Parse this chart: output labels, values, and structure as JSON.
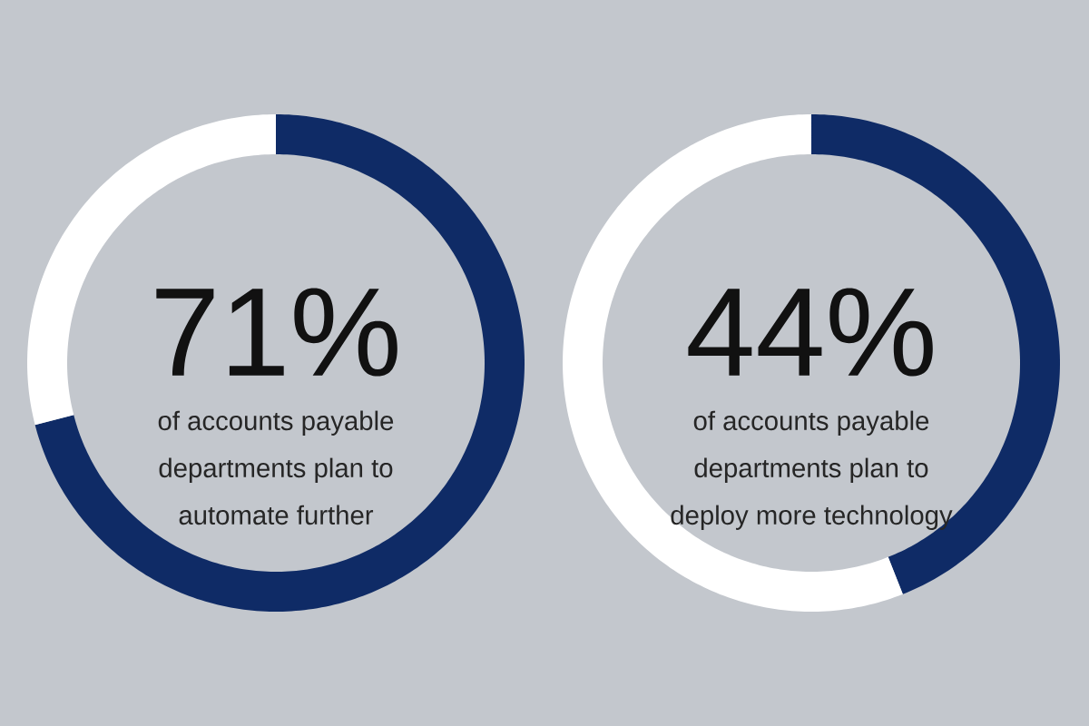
{
  "chart_data": [
    {
      "type": "donut",
      "categories": [
        null,
        null
      ],
      "values": [
        71,
        29
      ],
      "colors": [
        "#0f2b66",
        "#ffffff"
      ],
      "value_labels": [
        "71%",
        null
      ],
      "annotations": [
        "of accounts payable departments plan to automate further"
      ]
    },
    {
      "type": "donut",
      "categories": [
        null,
        null
      ],
      "values": [
        44,
        56
      ],
      "colors": [
        "#0f2b66",
        "#ffffff"
      ],
      "value_labels": [
        "44%",
        null
      ],
      "annotations": [
        "of accounts payable departments plan to deploy more technology"
      ]
    }
  ]
}
